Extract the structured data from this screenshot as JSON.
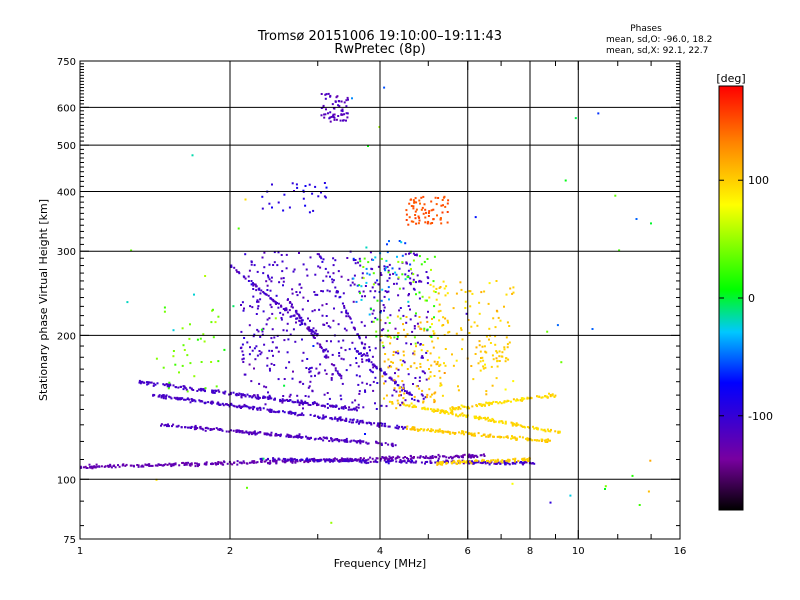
{
  "header": {
    "title_line1": "Tromsø 20151006 19:10:00–19:11:43",
    "title_line2": "RwPretec (8p)"
  },
  "info": {
    "heading": "Phases",
    "line1": "mean, sd,O: -96.0, 18.2",
    "line2": "mean, sd,X:  92.1, 22.7"
  },
  "chart_data": {
    "type": "scatter",
    "title": "Tromsø 20151006 19:10:00–19:11:43",
    "subtitle": "RwPretec (8p)",
    "xlabel": "Frequency [MHz]",
    "ylabel": "Stationary phase Virtual Height [km]",
    "x_scale": "log",
    "y_scale": "log",
    "xlim": [
      1,
      16
    ],
    "ylim": [
      75,
      750
    ],
    "x_ticks": [
      1,
      2,
      4,
      6,
      8,
      10,
      16
    ],
    "x_minor_ticks": [
      3,
      5,
      7,
      9,
      12,
      14
    ],
    "y_ticks": [
      75,
      100,
      200,
      300,
      400,
      500,
      600,
      750
    ],
    "grid": true,
    "grid_x_lines": [
      2,
      4,
      6,
      8,
      10
    ],
    "grid_y_lines": [
      100,
      200,
      300,
      400,
      500,
      600
    ],
    "colorbar": {
      "label": "[deg]",
      "range": [
        -180,
        180
      ],
      "ticks": [
        100,
        0,
        -100
      ],
      "colormap": "rainbow"
    },
    "traces": [
      {
        "freq_range": [
          1.0,
          6.5
        ],
        "height": [
          106,
          112
        ],
        "phase": -125,
        "spread": 12
      },
      {
        "freq_range": [
          2.3,
          8.2
        ],
        "height": [
          110,
          108
        ],
        "phase": -110,
        "spread": 25
      },
      {
        "freq_range": [
          5.2,
          8.0
        ],
        "height": [
          108,
          110
        ],
        "phase": 100,
        "spread": 10
      },
      {
        "freq_range": [
          1.4,
          4.5
        ],
        "height": [
          150,
          128
        ],
        "phase": -110,
        "spread": 15
      },
      {
        "freq_range": [
          1.45,
          4.3
        ],
        "height": [
          130,
          118
        ],
        "phase": -115,
        "spread": 15
      },
      {
        "freq_range": [
          1.3,
          3.6
        ],
        "height": [
          160,
          140
        ],
        "phase": -110,
        "spread": 15
      },
      {
        "freq_range": [
          3.5,
          4.8
        ],
        "height": [
          190,
          145
        ],
        "phase": -105,
        "spread": 20
      },
      {
        "freq_range": [
          4.2,
          9.2
        ],
        "height": [
          145,
          125
        ],
        "phase": 95,
        "spread": 15
      },
      {
        "freq_range": [
          4.5,
          8.8
        ],
        "height": [
          128,
          120
        ],
        "phase": 100,
        "spread": 15
      },
      {
        "freq_range": [
          5.5,
          9.0
        ],
        "height": [
          140,
          150
        ],
        "phase": 95,
        "spread": 20
      },
      {
        "freq_range": [
          2.0,
          3.0
        ],
        "height": [
          280,
          200
        ],
        "phase": -110,
        "spread": 20
      },
      {
        "freq_range": [
          2.6,
          3.4
        ],
        "height": [
          240,
          160
        ],
        "phase": -115,
        "spread": 20
      },
      {
        "freq_range": [
          3.0,
          3.8
        ],
        "height": [
          300,
          180
        ],
        "phase": -105,
        "spread": 20
      }
    ],
    "clusters": [
      {
        "freq_range": [
          2.1,
          5.0
        ],
        "height_range": [
          140,
          300
        ],
        "phase": -110,
        "spread": 20,
        "count": 520
      },
      {
        "freq_range": [
          4.0,
          5.4
        ],
        "height_range": [
          140,
          220
        ],
        "phase": 105,
        "spread": 25,
        "count": 110
      },
      {
        "freq_range": [
          5.0,
          7.5
        ],
        "height_range": [
          150,
          260
        ],
        "phase": 100,
        "spread": 25,
        "count": 110
      },
      {
        "freq_range": [
          4.5,
          5.5
        ],
        "height_range": [
          340,
          390
        ],
        "phase": 150,
        "spread": 12,
        "count": 70
      },
      {
        "freq_range": [
          3.05,
          3.45
        ],
        "height_range": [
          560,
          640
        ],
        "phase": -115,
        "spread": 15,
        "count": 60
      },
      {
        "freq_range": [
          3.6,
          5.2
        ],
        "height_range": [
          190,
          300
        ],
        "phase": 30,
        "spread": 40,
        "count": 60
      },
      {
        "freq_range": [
          1.4,
          1.9
        ],
        "height_range": [
          150,
          230
        ],
        "phase": 40,
        "spread": 25,
        "count": 35
      },
      {
        "freq_range": [
          6.3,
          7.3
        ],
        "height_range": [
          170,
          200
        ],
        "phase": 100,
        "spread": 15,
        "count": 35
      },
      {
        "freq_range": [
          2.3,
          3.2
        ],
        "height_range": [
          360,
          420
        ],
        "phase": -90,
        "spread": 25,
        "count": 30
      },
      {
        "freq_range": [
          3.5,
          4.6
        ],
        "height_range": [
          220,
          320
        ],
        "phase": -40,
        "spread": 40,
        "count": 40
      },
      {
        "freq_range": [
          1.2,
          14.0
        ],
        "height_range": [
          80,
          700
        ],
        "phase": 0,
        "spread": 150,
        "count": 45
      }
    ]
  }
}
